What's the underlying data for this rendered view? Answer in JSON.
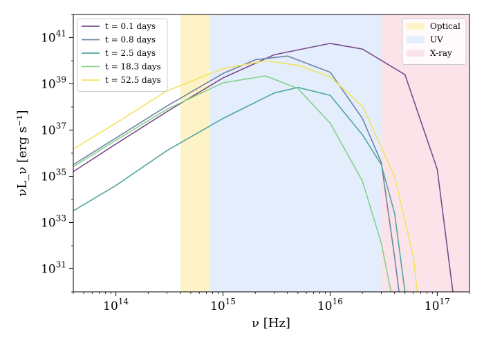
{
  "chart_data": {
    "type": "line",
    "title": "",
    "xlabel": "ν [Hz]",
    "ylabel": "νL_ν [erg s⁻¹]",
    "xscale": "log",
    "yscale": "log",
    "xlim": [
      40000000000000.0,
      2e+17
    ],
    "ylim": [
      1e+30,
      1e+42
    ],
    "x_tick_labels": [
      {
        "value": 100000000000000.0,
        "base": "10",
        "exp": "14"
      },
      {
        "value": 1000000000000000.0,
        "base": "10",
        "exp": "15"
      },
      {
        "value": 1e+16,
        "base": "10",
        "exp": "16"
      },
      {
        "value": 1e+17,
        "base": "10",
        "exp": "17"
      }
    ],
    "y_tick_labels": [
      {
        "value": 1e+31,
        "base": "10",
        "exp": "31"
      },
      {
        "value": 1e+33,
        "base": "10",
        "exp": "33"
      },
      {
        "value": 1e+35,
        "base": "10",
        "exp": "35"
      },
      {
        "value": 1e+37,
        "base": "10",
        "exp": "37"
      },
      {
        "value": 1e+39,
        "base": "10",
        "exp": "39"
      },
      {
        "value": 1e+41,
        "base": "10",
        "exp": "41"
      }
    ],
    "bands": [
      {
        "name": "Optical",
        "range": [
          400000000000000.0,
          750000000000000.0
        ],
        "color": "#fdf3c6"
      },
      {
        "name": "UV",
        "range": [
          750000000000000.0,
          3e+16
        ],
        "color": "#e3edfb"
      },
      {
        "name": "X-ray",
        "range": [
          3e+16,
          2e+17
        ],
        "color": "#fbe3ea"
      }
    ],
    "series": [
      {
        "name": "t = 0.1 days",
        "color": "#7b4a8c",
        "points": [
          [
            40000000000000.0,
            1.6e+35
          ],
          [
            100000000000000.0,
            2.5e+36
          ],
          [
            300000000000000.0,
            6.3e+37
          ],
          [
            1000000000000000.0,
            1.8e+39
          ],
          [
            3000000000000000.0,
            1.8e+40
          ],
          [
            1e+16,
            5.6e+40
          ],
          [
            2e+16,
            3.2e+40
          ],
          [
            5e+16,
            2.5e+39
          ],
          [
            1e+17,
            2e+35
          ],
          [
            1.4e+17,
            1e+30
          ]
        ]
      },
      {
        "name": "t = 0.8 days",
        "color": "#6e83a6",
        "points": [
          [
            40000000000000.0,
            3.2e+35
          ],
          [
            100000000000000.0,
            4.5e+36
          ],
          [
            300000000000000.0,
            1.1e+38
          ],
          [
            1000000000000000.0,
            2.8e+39
          ],
          [
            2000000000000000.0,
            1.1e+40
          ],
          [
            4000000000000000.0,
            1.6e+40
          ],
          [
            1e+16,
            3.2e+39
          ],
          [
            2e+16,
            3.2e+37
          ],
          [
            3e+16,
            4e+35
          ],
          [
            4e+16,
            3.2e+31
          ],
          [
            4.4e+16,
            1e+30
          ]
        ]
      },
      {
        "name": "t = 2.5 days",
        "color": "#4ea6a0",
        "points": [
          [
            40000000000000.0,
            3.2e+33
          ],
          [
            100000000000000.0,
            4e+34
          ],
          [
            300000000000000.0,
            1.3e+36
          ],
          [
            1000000000000000.0,
            3.2e+37
          ],
          [
            3000000000000000.0,
            4e+38
          ],
          [
            5000000000000000.0,
            7e+38
          ],
          [
            1e+16,
            3.2e+38
          ],
          [
            2e+16,
            6.3e+36
          ],
          [
            3e+16,
            3.2e+35
          ],
          [
            4e+16,
            2.5e+33
          ],
          [
            5e+16,
            1e+30
          ]
        ]
      },
      {
        "name": "t = 18.3 days",
        "color": "#86d08c",
        "points": [
          [
            40000000000000.0,
            2.6e+35
          ],
          [
            100000000000000.0,
            3.6e+36
          ],
          [
            300000000000000.0,
            8e+37
          ],
          [
            1000000000000000.0,
            1.1e+39
          ],
          [
            2500000000000000.0,
            2.2e+39
          ],
          [
            5000000000000000.0,
            6.3e+38
          ],
          [
            1e+16,
            2e+37
          ],
          [
            2e+16,
            6.3e+34
          ],
          [
            3e+16,
            1.3e+32
          ],
          [
            3.7e+16,
            1e+30
          ]
        ]
      },
      {
        "name": "t = 52.5 days",
        "color": "#f4e35c",
        "points": [
          [
            40000000000000.0,
            1.5e+36
          ],
          [
            100000000000000.0,
            2e+37
          ],
          [
            300000000000000.0,
            5e+38
          ],
          [
            1000000000000000.0,
            4.5e+39
          ],
          [
            2500000000000000.0,
            1e+40
          ],
          [
            5000000000000000.0,
            6.3e+39
          ],
          [
            1e+16,
            2e+39
          ],
          [
            2e+16,
            1.1e+38
          ],
          [
            4e+16,
            1e+35
          ],
          [
            6e+16,
            3.2e+31
          ],
          [
            6.5e+16,
            1e+30
          ]
        ]
      }
    ]
  }
}
